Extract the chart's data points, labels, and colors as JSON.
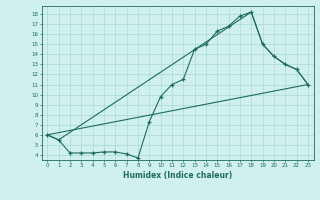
{
  "xlabel": "Humidex (Indice chaleur)",
  "bg_color": "#cff0ee",
  "line_color": "#1e6b60",
  "grid_color": "#aad8d3",
  "xlim": [
    -0.5,
    23.5
  ],
  "ylim": [
    3.5,
    18.8
  ],
  "xticks": [
    0,
    1,
    2,
    3,
    4,
    5,
    6,
    7,
    8,
    9,
    10,
    11,
    12,
    13,
    14,
    15,
    16,
    17,
    18,
    19,
    20,
    21,
    22,
    23
  ],
  "yticks": [
    4,
    5,
    6,
    7,
    8,
    9,
    10,
    11,
    12,
    13,
    14,
    15,
    16,
    17,
    18
  ],
  "line1_x": [
    0,
    1,
    2,
    3,
    4,
    5,
    6,
    7,
    8,
    9,
    10,
    11,
    12,
    13,
    14,
    15,
    16,
    17,
    18,
    19,
    20,
    21,
    22,
    23
  ],
  "line1_y": [
    6.0,
    5.5,
    4.2,
    4.2,
    4.2,
    4.3,
    4.3,
    4.1,
    3.7,
    7.3,
    9.8,
    11.0,
    11.5,
    14.5,
    15.0,
    16.3,
    16.8,
    17.8,
    18.2,
    15.0,
    13.8,
    13.0,
    12.5,
    11.0
  ],
  "line2_x": [
    0,
    1,
    18,
    19,
    20,
    21,
    22,
    23
  ],
  "line2_y": [
    6.0,
    5.5,
    18.2,
    15.0,
    13.8,
    13.0,
    12.5,
    11.0
  ],
  "line3_x": [
    0,
    23
  ],
  "line3_y": [
    6.0,
    11.0
  ]
}
